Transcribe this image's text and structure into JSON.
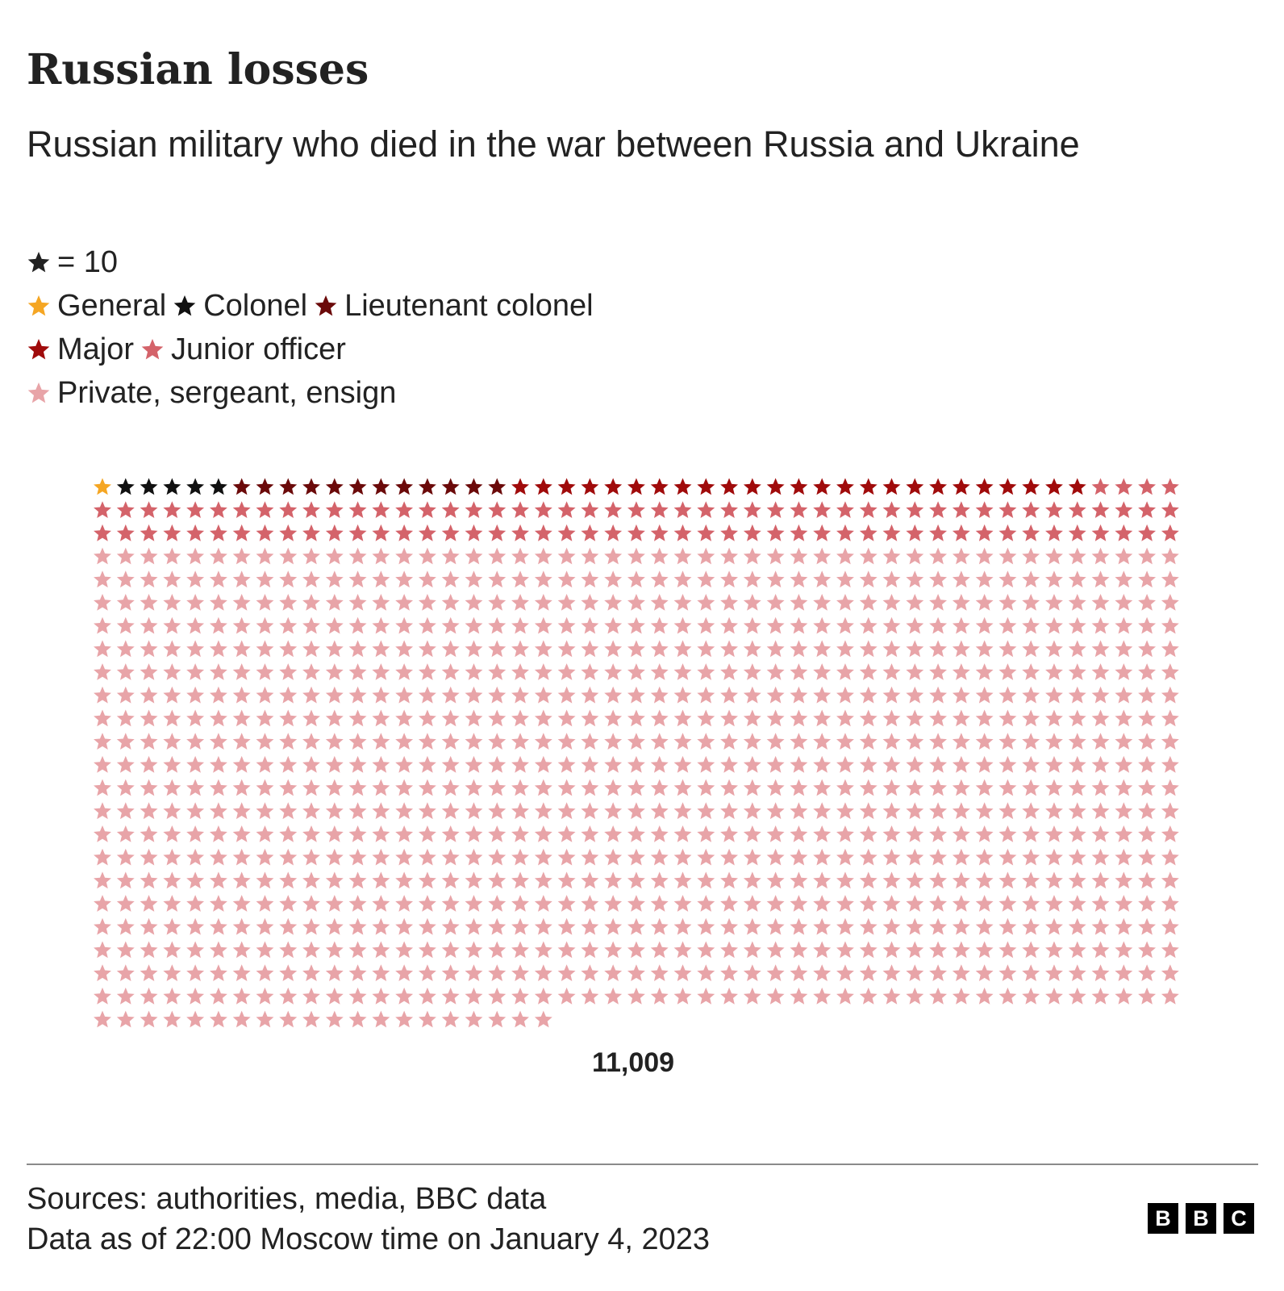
{
  "header": {
    "title": "Russian losses",
    "subtitle": "Russian military who died in the war between Russia and Ukraine"
  },
  "key": {
    "icon": "star-icon",
    "color": "#222222",
    "label": "= 10"
  },
  "legend": [
    {
      "label": "General",
      "color": "#f5a623",
      "icon": "star-icon"
    },
    {
      "label": "Colonel",
      "color": "#111111",
      "icon": "star-icon"
    },
    {
      "label": "Lieutenant colonel",
      "color": "#6b0a0a",
      "icon": "star-icon"
    },
    {
      "label": "Major",
      "color": "#a00b0b",
      "icon": "star-icon"
    },
    {
      "label": "Junior officer",
      "color": "#d4636a",
      "icon": "star-icon"
    },
    {
      "label": "Private, sergeant, ensign",
      "color": "#e8a4a8",
      "icon": "star-icon"
    }
  ],
  "chart_data": {
    "type": "waffle",
    "unit": 10,
    "total_label": "11,009",
    "categories": [
      "General",
      "Colonel",
      "Lieutenant colonel",
      "Major",
      "Junior officer",
      "Private, sergeant, ensign"
    ],
    "icon_counts": [
      1,
      5,
      12,
      25,
      98,
      960
    ],
    "colors": [
      "#f5a623",
      "#111111",
      "#6b0a0a",
      "#a00b0b",
      "#d4636a",
      "#e8a4a8"
    ],
    "columns": 47
  },
  "footer": {
    "sources": "Sources: authorities, media, BBC data",
    "date_note": "Data as of 22:00 Moscow time on January 4, 2023",
    "logo_letters": [
      "B",
      "B",
      "C"
    ]
  }
}
